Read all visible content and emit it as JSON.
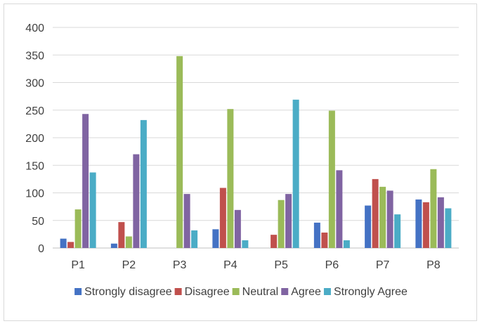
{
  "chart_data": {
    "type": "bar",
    "title": "",
    "xlabel": "",
    "ylabel": "",
    "categories": [
      "P1",
      "P2",
      "P3",
      "P4",
      "P5",
      "P6",
      "P7",
      "P8"
    ],
    "ylim": [
      0,
      400
    ],
    "yticks": [
      0,
      50,
      100,
      150,
      200,
      250,
      300,
      350,
      400
    ],
    "grid": "horizontal",
    "legend_position": "bottom",
    "series": [
      {
        "name": "Strongly disagree",
        "color": "#4472C4",
        "values": [
          17,
          8,
          0,
          34,
          0,
          46,
          77,
          88
        ]
      },
      {
        "name": "Disagree",
        "color": "#C0504D",
        "values": [
          11,
          47,
          0,
          109,
          24,
          28,
          125,
          83
        ]
      },
      {
        "name": "Neutral",
        "color": "#9BBB59",
        "values": [
          70,
          21,
          348,
          252,
          87,
          249,
          111,
          143
        ]
      },
      {
        "name": "Agree",
        "color": "#8064A2",
        "values": [
          243,
          170,
          98,
          69,
          98,
          141,
          104,
          92
        ]
      },
      {
        "name": "Strongly Agree",
        "color": "#4BACC6",
        "values": [
          137,
          232,
          32,
          14,
          269,
          14,
          61,
          72
        ]
      }
    ]
  }
}
